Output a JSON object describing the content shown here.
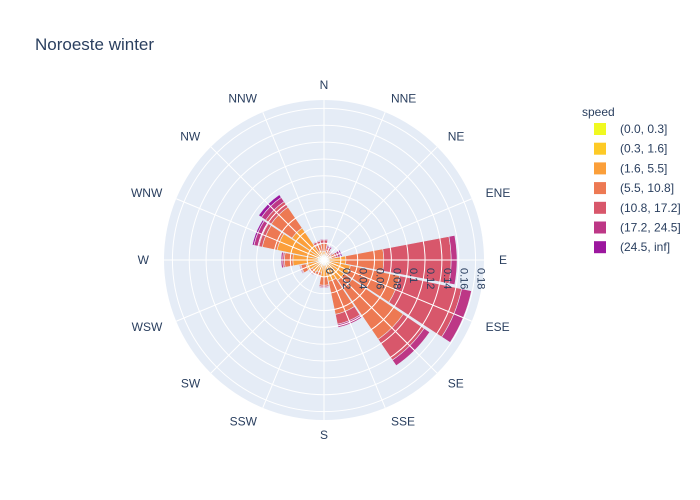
{
  "chart_data": {
    "type": "barpolar",
    "title": "Noroeste winter",
    "directions": [
      "N",
      "NNE",
      "NE",
      "ENE",
      "E",
      "ESE",
      "SE",
      "SSE",
      "S",
      "SSW",
      "SW",
      "WSW",
      "W",
      "WNW",
      "NW",
      "NNW"
    ],
    "radial_ticks": [
      "0",
      "0.02",
      "0.04",
      "0.06",
      "0.08",
      "0.1",
      "0.12",
      "0.14",
      "0.16",
      "0.18"
    ],
    "radial_range": [
      0,
      0.19
    ],
    "legend_title": "speed",
    "legend_position": "right",
    "series": [
      {
        "name": "(0.0, 0.3]",
        "color": "#f0f921",
        "values": [
          0,
          0,
          0,
          0,
          0,
          0,
          0,
          0,
          0,
          0,
          0,
          0,
          0,
          0,
          0,
          0
        ]
      },
      {
        "name": "(0.3, 1.6]",
        "color": "#fdca26",
        "values": [
          0.004,
          0.003,
          0.002,
          0.003,
          0.004,
          0.006,
          0.007,
          0.006,
          0.006,
          0.005,
          0.005,
          0.006,
          0.007,
          0.007,
          0.006,
          0.005
        ]
      },
      {
        "name": "(1.6, 5.5]",
        "color": "#fb9f3a",
        "values": [
          0.006,
          0.005,
          0.004,
          0.006,
          0.022,
          0.026,
          0.022,
          0.02,
          0.014,
          0.01,
          0.012,
          0.016,
          0.03,
          0.05,
          0.04,
          0.006
        ]
      },
      {
        "name": "(5.5, 10.8]",
        "color": "#ed7953",
        "values": [
          0.01,
          0.004,
          0.004,
          0.005,
          0.045,
          0.06,
          0.085,
          0.04,
          0.01,
          0.004,
          0.003,
          0.006,
          0.01,
          0.018,
          0.03,
          0.008
        ]
      },
      {
        "name": "(10.8, 17.2]",
        "color": "#d8576b",
        "values": [
          0.004,
          0.003,
          0.002,
          0.003,
          0.08,
          0.075,
          0.03,
          0.012,
          0.002,
          0.001,
          0.001,
          0.001,
          0.002,
          0.004,
          0.008,
          0.004
        ]
      },
      {
        "name": "(17.2, 24.5]",
        "color": "#bd3786",
        "values": [
          0.001,
          0.002,
          0.001,
          0.003,
          0.007,
          0.012,
          0.008,
          0.004,
          0.001,
          0.001,
          0.001,
          0.001,
          0.002,
          0.006,
          0.006,
          0.001
        ]
      },
      {
        "name": "(24.5, inf]",
        "color": "#9c179e",
        "values": [
          0.0,
          0.001,
          0.0,
          0.002,
          0.0,
          0.0,
          0.0,
          0.0,
          0.0,
          0.0,
          0.0,
          0.0,
          0.0,
          0.002,
          0.004,
          0.0
        ]
      }
    ]
  }
}
